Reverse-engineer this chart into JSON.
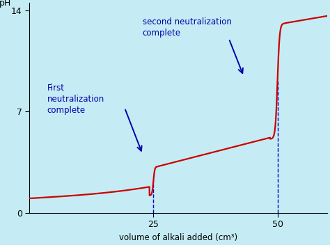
{
  "background_color": "#c5ecf4",
  "curve_color": "#cc0000",
  "dashed_color": "#0000cc",
  "arrow_color": "#0000aa",
  "text_color": "#000000",
  "xlabel": "volume of alkali added (cm³)",
  "ylabel": "pH",
  "yticks": [
    0,
    7,
    14
  ],
  "xticks": [
    25,
    50
  ],
  "ylim": [
    0,
    14.5
  ],
  "xlim": [
    0,
    60
  ],
  "figsize": [
    4.74,
    3.52
  ],
  "dpi": 100,
  "annotation1_text": "First\nneutralization\ncomplete",
  "annotation2_text": "second neutralization\ncomplete",
  "dashed1_x": 25,
  "dashed2_x": 50
}
